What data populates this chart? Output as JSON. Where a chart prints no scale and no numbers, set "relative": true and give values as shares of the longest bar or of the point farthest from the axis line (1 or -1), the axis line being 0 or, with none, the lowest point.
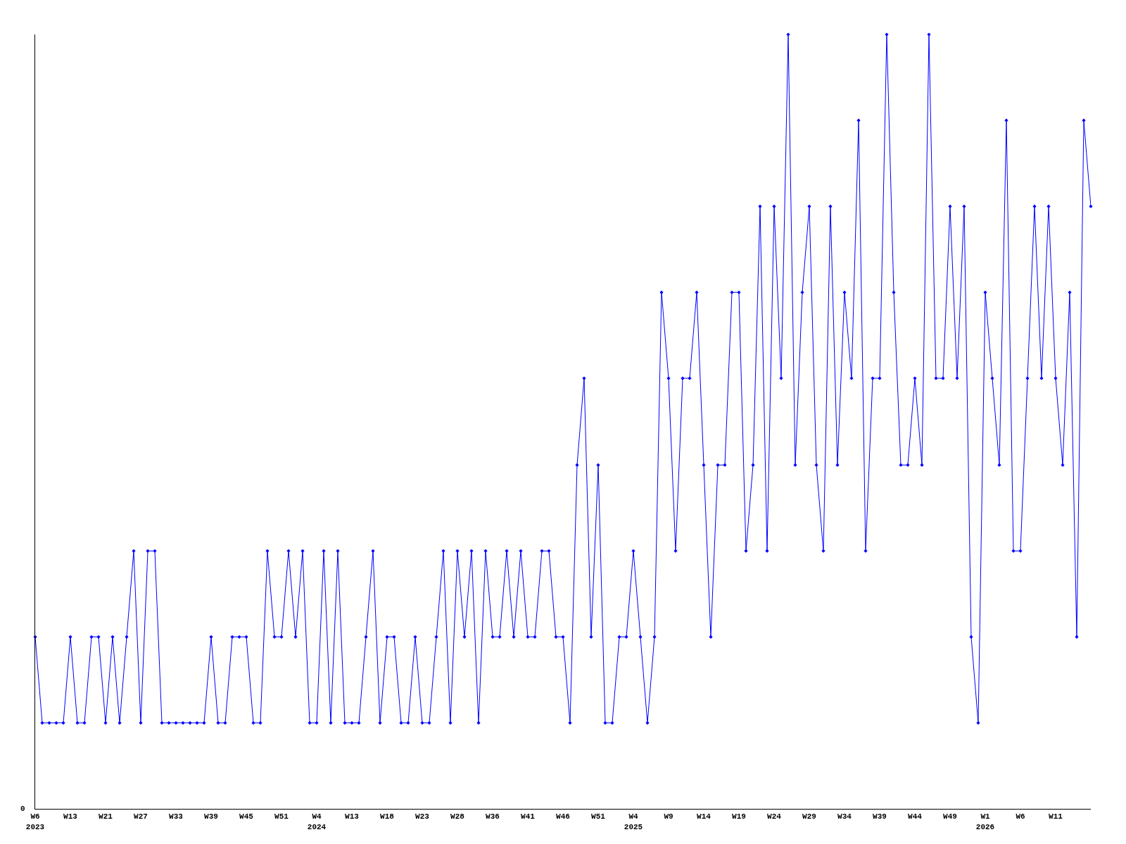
{
  "chart_data": {
    "type": "line",
    "relative": true,
    "color": "#0000ff",
    "marker": "diamond",
    "line_style": "solid",
    "annotations": [
      "0"
    ],
    "categories": [
      "W6\n2023",
      null,
      null,
      null,
      null,
      "W13",
      null,
      null,
      null,
      null,
      "W21",
      null,
      null,
      null,
      null,
      "W27",
      null,
      null,
      null,
      null,
      "W33",
      null,
      null,
      null,
      null,
      "W39",
      null,
      null,
      null,
      null,
      "W45",
      null,
      null,
      null,
      null,
      "W51",
      null,
      null,
      null,
      null,
      "W4\n2024",
      null,
      null,
      null,
      null,
      "W13",
      null,
      null,
      null,
      null,
      "W18",
      null,
      null,
      null,
      null,
      "W23",
      null,
      null,
      null,
      null,
      "W28",
      null,
      null,
      null,
      null,
      "W36",
      null,
      null,
      null,
      null,
      "W41",
      null,
      null,
      null,
      null,
      "W46",
      null,
      null,
      null,
      null,
      "W51",
      null,
      null,
      null,
      null,
      "W4\n2025",
      null,
      null,
      null,
      null,
      "W9",
      null,
      null,
      null,
      null,
      "W14",
      null,
      null,
      null,
      null,
      "W19",
      null,
      null,
      null,
      null,
      "W24",
      null,
      null,
      null,
      null,
      "W29",
      null,
      null,
      null,
      null,
      "W34",
      null,
      null,
      null,
      null,
      "W39",
      null,
      null,
      null,
      null,
      "W44",
      null,
      null,
      null,
      null,
      "W49",
      null,
      null,
      null,
      null,
      "W1\n2026",
      null,
      null,
      null,
      null,
      "W6",
      null,
      null,
      null,
      null,
      "W11",
      null,
      null,
      null,
      null,
      null
    ],
    "values": [
      0.222,
      0.111,
      0.111,
      0.111,
      0.111,
      0.222,
      0.111,
      0.111,
      0.222,
      0.222,
      0.111,
      0.222,
      0.111,
      0.222,
      0.333,
      0.111,
      0.333,
      0.333,
      0.111,
      0.111,
      0.111,
      0.111,
      0.111,
      0.111,
      0.111,
      0.222,
      0.111,
      0.111,
      0.222,
      0.222,
      0.222,
      0.111,
      0.111,
      0.333,
      0.222,
      0.222,
      0.333,
      0.222,
      0.333,
      0.111,
      0.111,
      0.333,
      0.111,
      0.333,
      0.111,
      0.111,
      0.111,
      0.222,
      0.333,
      0.111,
      0.222,
      0.222,
      0.111,
      0.111,
      0.222,
      0.111,
      0.111,
      0.222,
      0.333,
      0.111,
      0.333,
      0.222,
      0.333,
      0.111,
      0.333,
      0.222,
      0.222,
      0.333,
      0.222,
      0.333,
      0.222,
      0.222,
      0.333,
      0.333,
      0.222,
      0.222,
      0.111,
      0.444,
      0.556,
      0.222,
      0.444,
      0.111,
      0.111,
      0.222,
      0.222,
      0.333,
      0.222,
      0.111,
      0.222,
      0.667,
      0.556,
      0.333,
      0.556,
      0.556,
      0.667,
      0.444,
      0.222,
      0.444,
      0.444,
      0.667,
      0.667,
      0.333,
      0.444,
      0.778,
      0.333,
      0.778,
      0.556,
      1,
      0.444,
      0.667,
      0.778,
      0.444,
      0.333,
      0.778,
      0.444,
      0.667,
      0.556,
      0.889,
      0.333,
      0.556,
      0.556,
      1,
      0.667,
      0.444,
      0.444,
      0.556,
      0.444,
      1,
      0.556,
      0.556,
      0.778,
      0.556,
      0.778,
      0.222,
      0.111,
      0.667,
      0.556,
      0.444,
      0.889,
      0.333,
      0.333,
      0.556,
      0.778,
      0.556,
      0.778,
      0.556,
      0.444,
      0.667,
      0.222,
      0.889,
      0.778
    ]
  }
}
